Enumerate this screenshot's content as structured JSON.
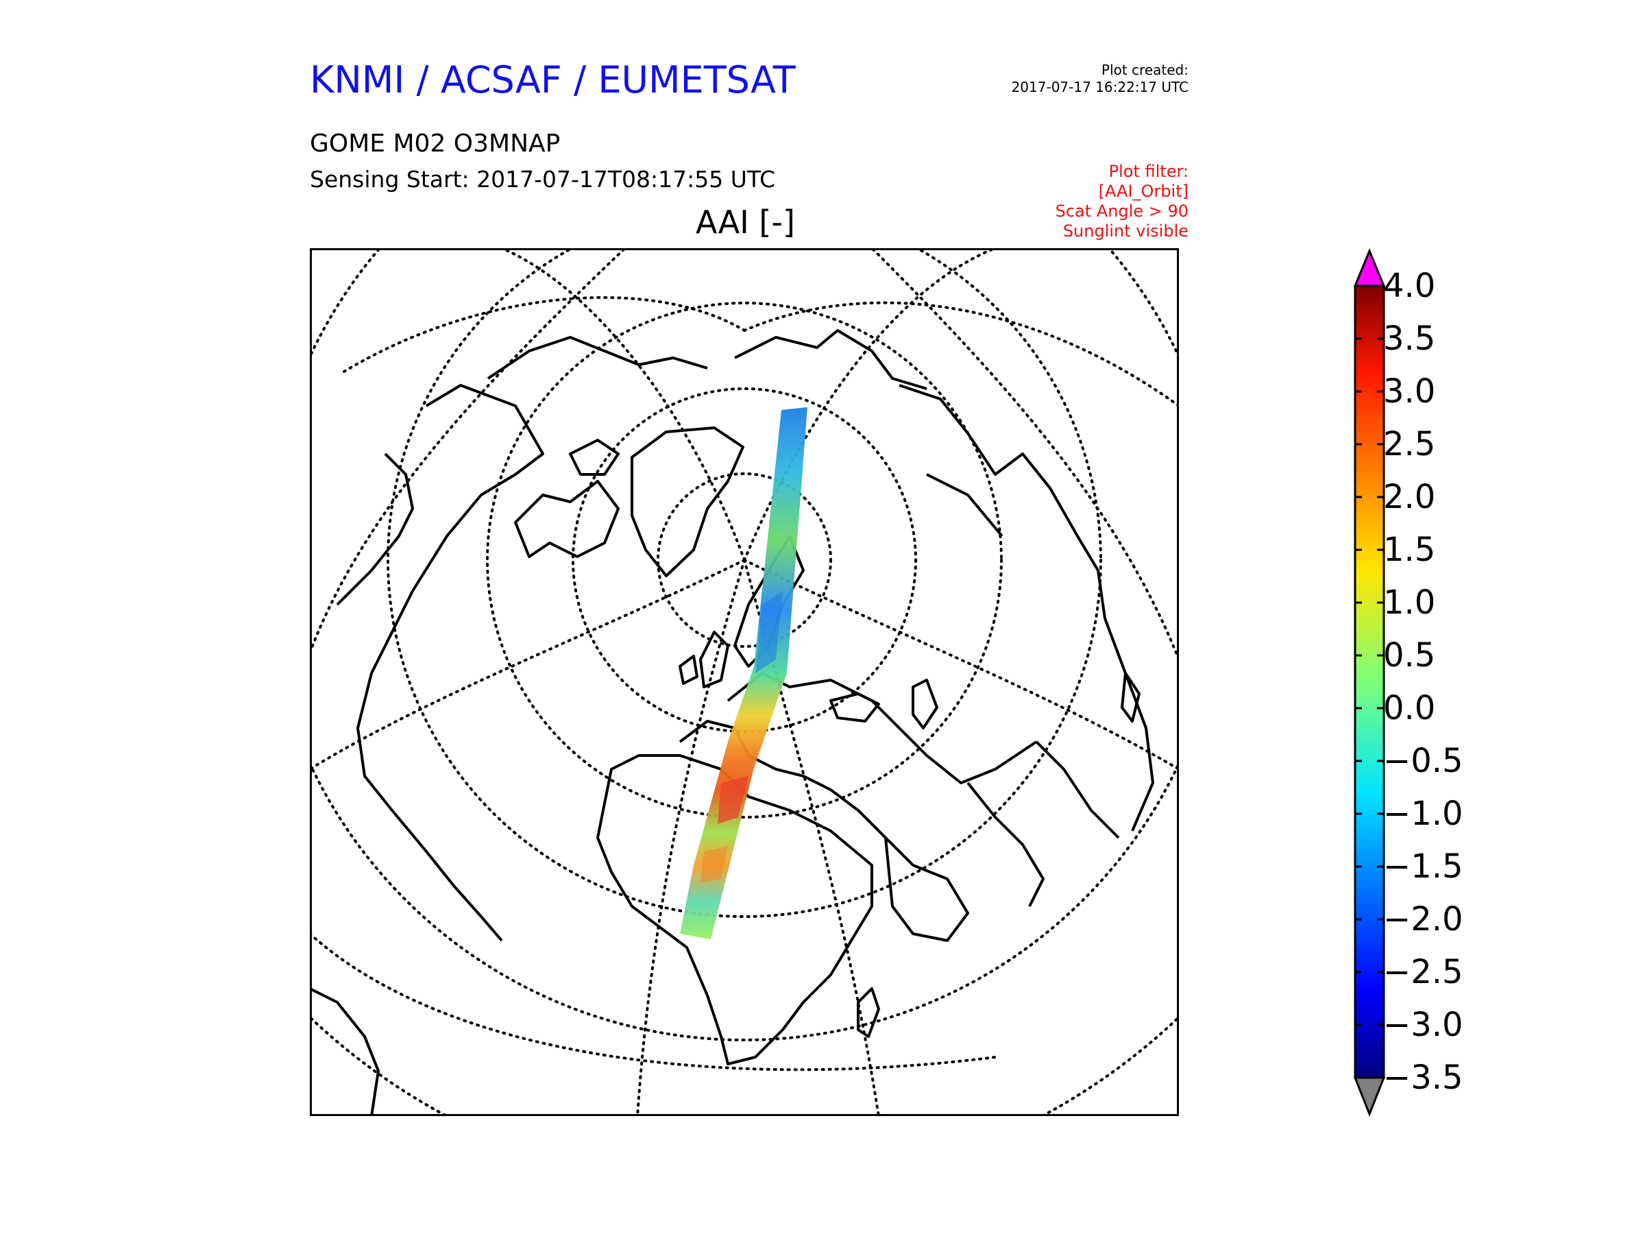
{
  "header": {
    "organisation": "KNMI / ACSAF / EUMETSAT",
    "plot_created_label": "Plot created:",
    "plot_created_time": "2017-07-17 16:22:17 UTC",
    "product": "GOME M02 O3MNAP",
    "sensing_start": "Sensing Start: 2017-07-17T08:17:55 UTC",
    "title": "AAI [-]"
  },
  "plot_filter": {
    "label": "Plot filter:",
    "items": [
      "[AAI_Orbit]",
      "Scat Angle > 90",
      "Sunglint visible"
    ]
  },
  "colorbar": {
    "min": -3.5,
    "max": 4.0,
    "ticks": [
      "4.0",
      "3.5",
      "3.0",
      "2.5",
      "2.0",
      "1.5",
      "1.0",
      "0.5",
      "0.0",
      "−0.5",
      "−1.0",
      "−1.5",
      "−2.0",
      "−2.5",
      "−3.0",
      "−3.5"
    ],
    "over_color": "#ff00ff",
    "under_color": "#808080",
    "colormap": "jet"
  },
  "map": {
    "projection": "polar stereographic (north)",
    "graticule": "dotted",
    "coastlines": true,
    "swath": "GOME-2 orbit track from northern Russia over Scandinavia, Europe and West Africa"
  },
  "colors": {
    "organisation_text": "#1010ee",
    "filter_text": "#ee1010"
  }
}
